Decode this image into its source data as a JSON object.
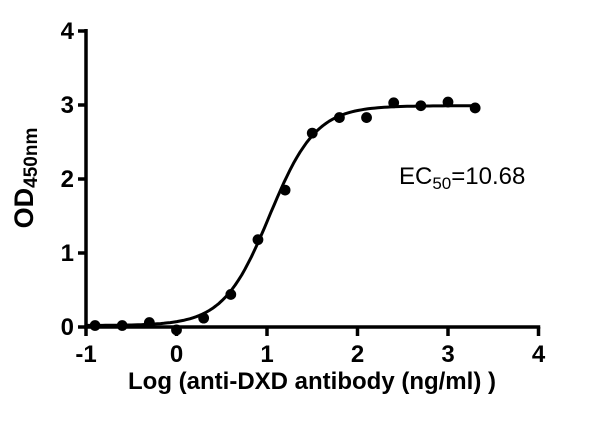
{
  "chart_data": {
    "type": "scatter",
    "title": "",
    "xlabel": "Log (anti-DXD antibody (ng/ml) )",
    "ylabel": "OD450nm",
    "ylabel_main": "OD",
    "ylabel_sub": "450nm",
    "xlim": [
      -1,
      4
    ],
    "ylim": [
      0,
      4
    ],
    "x_ticks": [
      "-1",
      "0",
      "1",
      "2",
      "3",
      "4"
    ],
    "x_tick_values": [
      -1,
      0,
      1,
      2,
      3,
      4
    ],
    "y_ticks": [
      "0",
      "1",
      "2",
      "3",
      "4"
    ],
    "y_tick_values": [
      0,
      1,
      2,
      3,
      4
    ],
    "grid": false,
    "legend": "none",
    "points": {
      "x": [
        -0.9,
        -0.6,
        -0.3,
        0.0,
        0.3,
        0.6,
        0.9,
        1.2,
        1.5,
        1.8,
        2.1,
        2.4,
        2.7,
        3.0,
        3.3
      ],
      "y": [
        0.02,
        0.02,
        0.06,
        -0.04,
        0.12,
        0.44,
        1.18,
        1.85,
        2.62,
        2.83,
        2.83,
        3.03,
        2.99,
        3.04,
        2.96
      ]
    },
    "fit_curve": {
      "model": "4PL sigmoid",
      "bottom": 0.02,
      "top": 2.99,
      "log_ec50": 1.0286,
      "hill": 1.7,
      "x_start": -1.0,
      "x_end": 3.3,
      "ec50": 10.68
    },
    "annotation": {
      "prefix": "EC",
      "sub": "50",
      "value": "=10.68"
    },
    "colors": {
      "foreground": "#000000",
      "background": "#ffffff"
    }
  }
}
